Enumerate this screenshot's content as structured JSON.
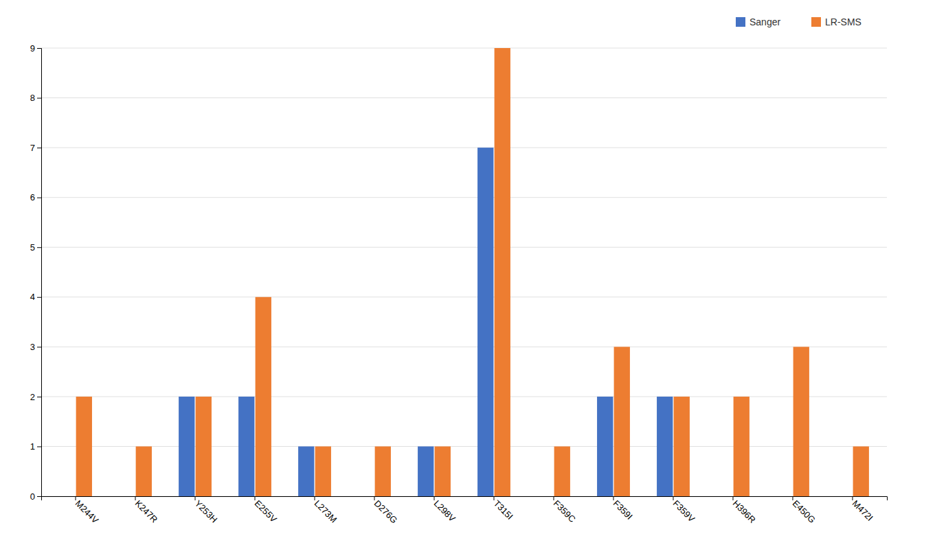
{
  "chart_data": {
    "type": "bar",
    "categories": [
      "M244V",
      "K247R",
      "Y253H",
      "E255V",
      "L273M",
      "D276G",
      "L298V",
      "T315I",
      "F359C",
      "F359I",
      "F359V",
      "H396R",
      "E450G",
      "M472I"
    ],
    "series": [
      {
        "name": "Sanger",
        "color": "#4472C4",
        "values": [
          0,
          0,
          2,
          2,
          1,
          0,
          1,
          7,
          0,
          2,
          2,
          0,
          0,
          0
        ]
      },
      {
        "name": "LR-SMS",
        "color": "#ED7D31",
        "values": [
          2,
          1,
          2,
          4,
          1,
          1,
          1,
          9,
          1,
          3,
          2,
          2,
          3,
          1
        ]
      }
    ],
    "ylim": [
      0,
      9
    ],
    "yticks": [
      0,
      1,
      2,
      3,
      4,
      5,
      6,
      7,
      8,
      9
    ],
    "grid": true,
    "legend": "upper right"
  }
}
